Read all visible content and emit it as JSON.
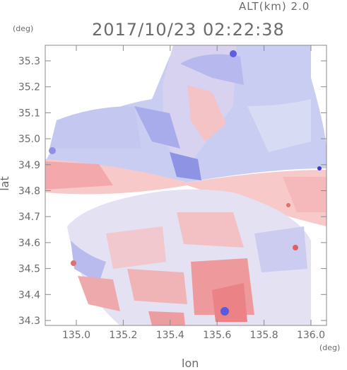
{
  "header": {
    "altitude_label": "ALT(km) 2.0",
    "timestamp": "2017/10/23 02:22:38"
  },
  "axes": {
    "y_unit": "(deg)",
    "x_unit": "(deg)",
    "x_title": "lon",
    "y_title": "lat",
    "x_ticks": [
      "135.0",
      "135.2",
      "135.4",
      "135.6",
      "135.8",
      "136.0"
    ],
    "y_ticks": [
      "35.3",
      "35.2",
      "35.1",
      "35.0",
      "34.9",
      "34.8",
      "34.7",
      "34.6",
      "34.5",
      "34.4",
      "34.3"
    ]
  },
  "colors": {
    "positive": "#f08a8a",
    "negative": "#8f8ff0",
    "neutral": "#e8e8f4",
    "frame": "#8a8a8a"
  }
}
